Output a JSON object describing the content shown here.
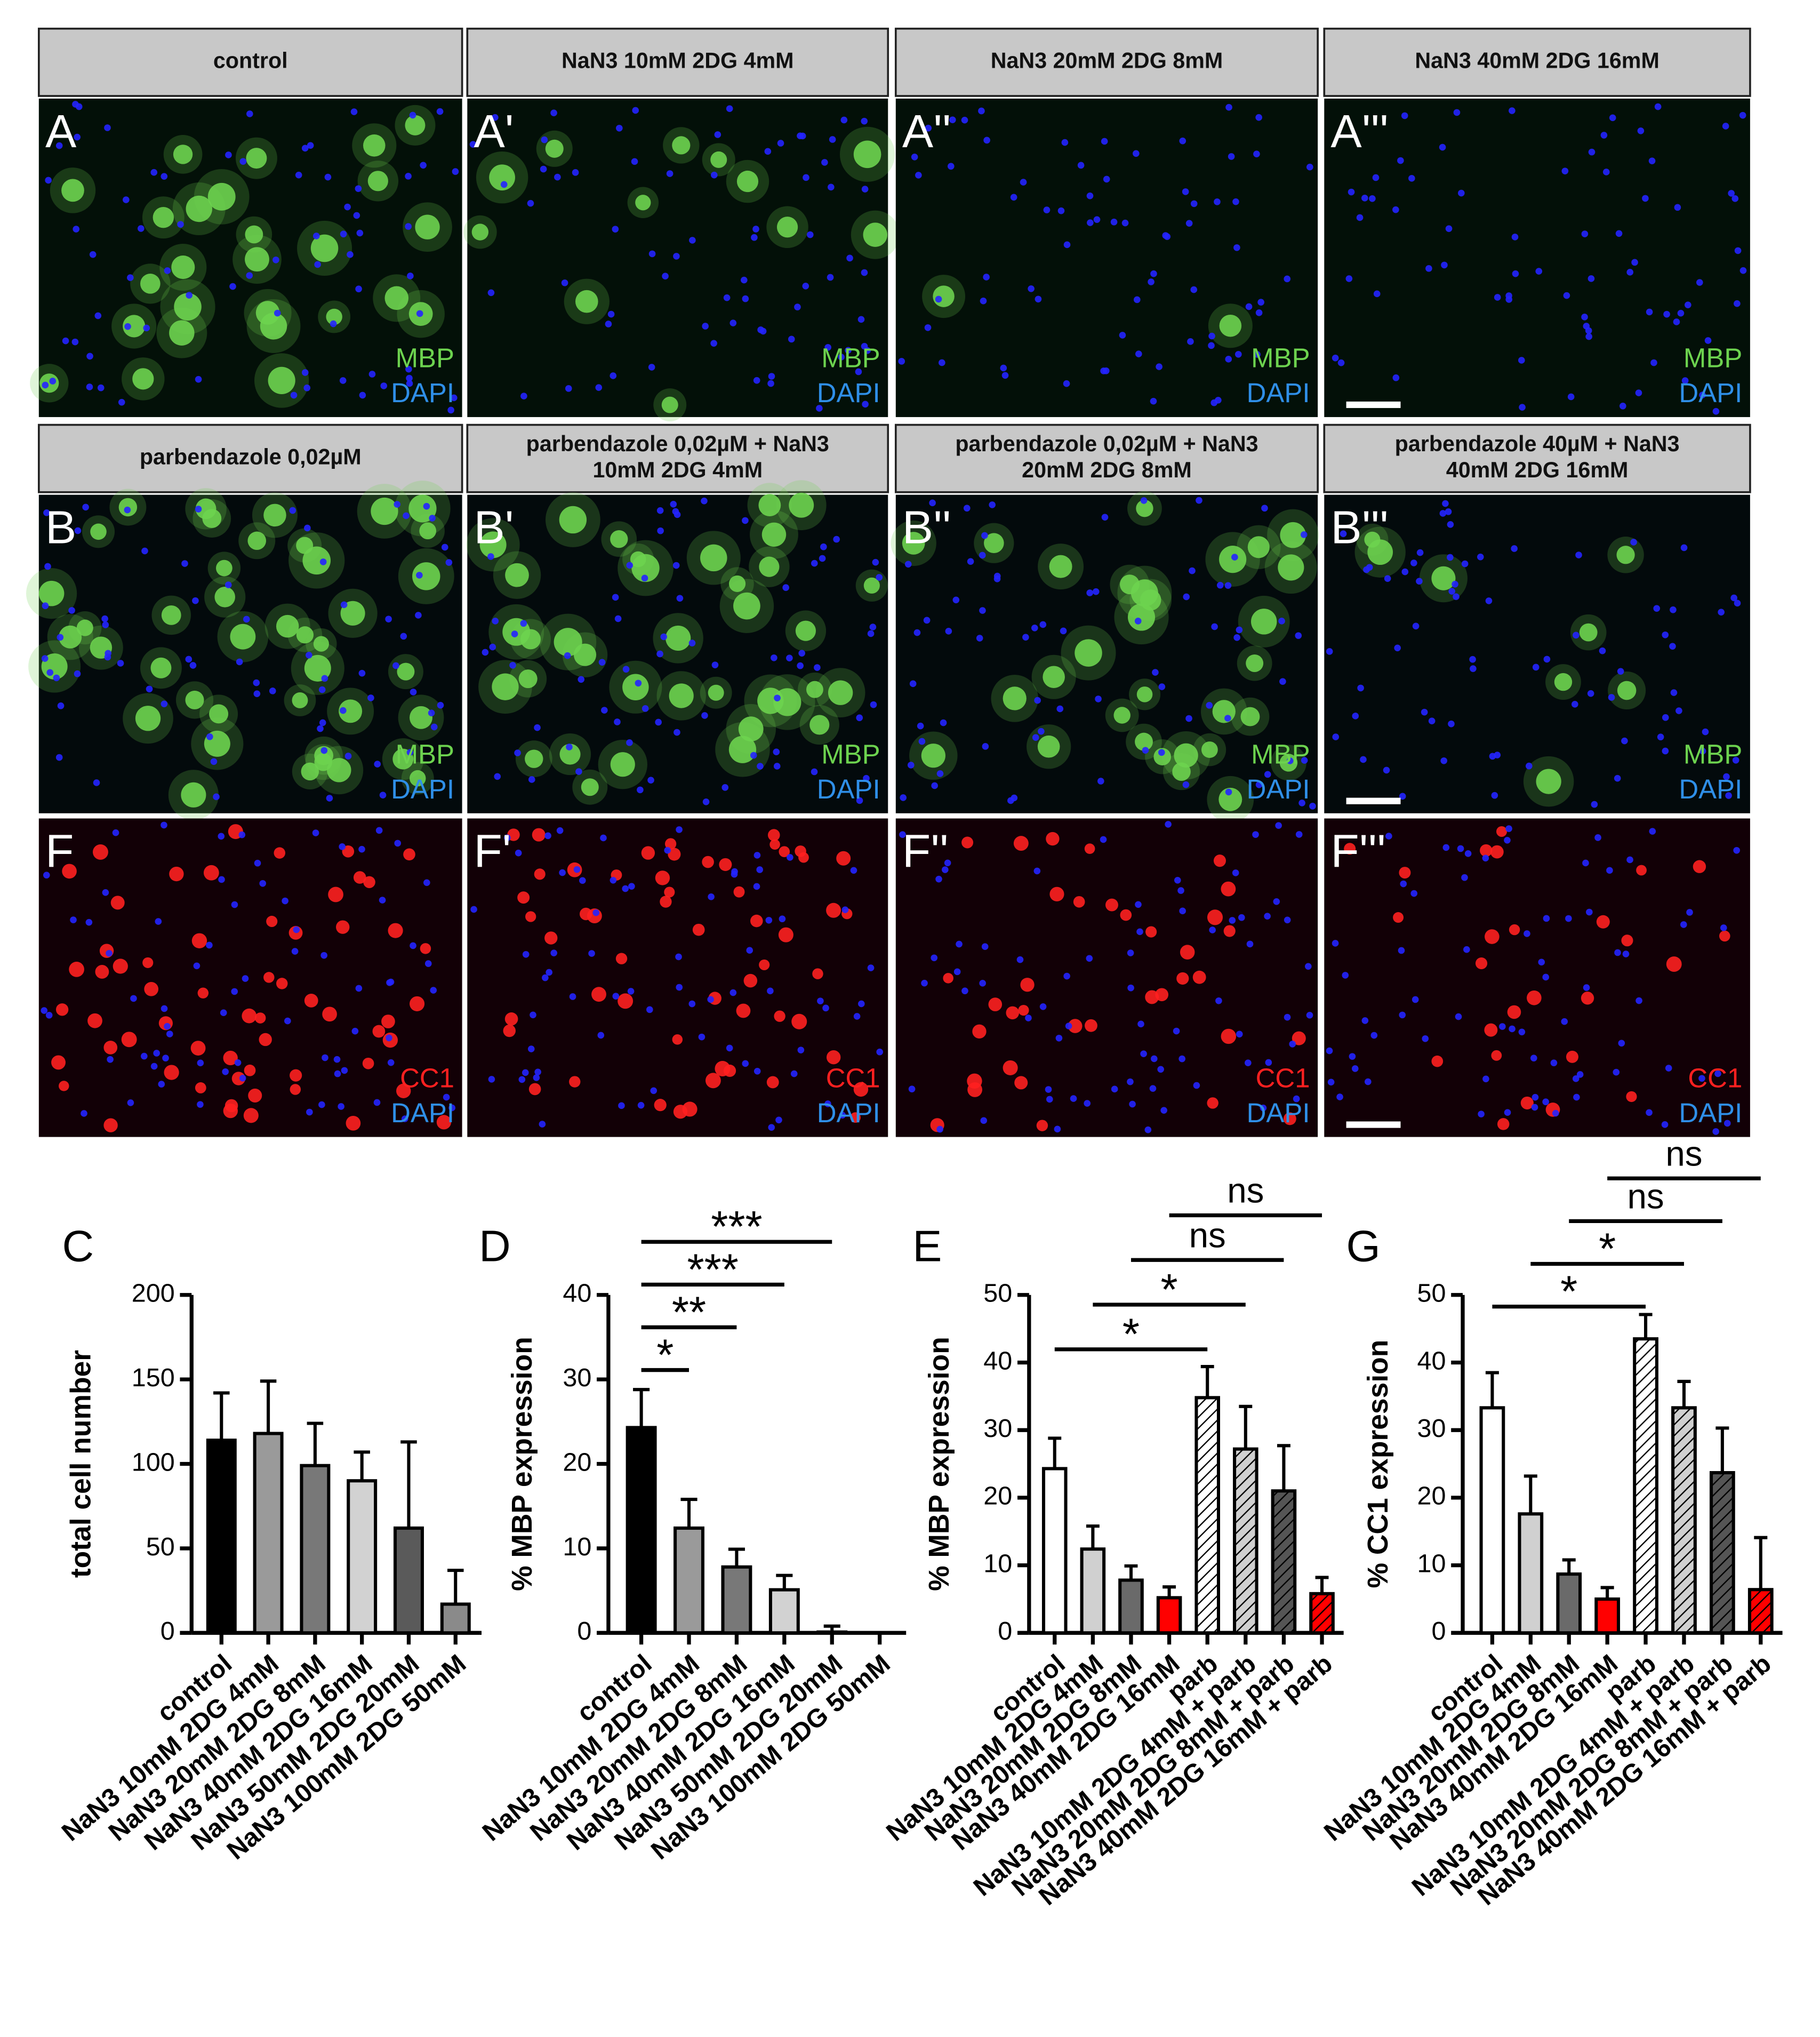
{
  "panels": {
    "rows": [
      {
        "headers": [
          [
            "control"
          ],
          [
            "NaN3 10mM 2DG 4mM"
          ],
          [
            "NaN3 20mM 2DG 8mM"
          ],
          [
            "NaN3 40mM 2DG 16mM"
          ]
        ],
        "images": [
          {
            "label": "A",
            "channels": [
              {
                "text": "MBP",
                "color": "#6dd34f"
              },
              {
                "text": "DAPI",
                "color": "#2f8fe8"
              }
            ]
          },
          {
            "label": "A'",
            "channels": [
              {
                "text": "MBP",
                "color": "#6dd34f"
              },
              {
                "text": "DAPI",
                "color": "#2f8fe8"
              }
            ]
          },
          {
            "label": "A''",
            "channels": [
              {
                "text": "MBP",
                "color": "#6dd34f"
              },
              {
                "text": "DAPI",
                "color": "#2f8fe8"
              }
            ]
          },
          {
            "label": "A'''",
            "channels": [
              {
                "text": "MBP",
                "color": "#6dd34f"
              },
              {
                "text": "DAPI",
                "color": "#2f8fe8"
              }
            ]
          }
        ]
      },
      {
        "headers": [
          [
            "parbendazole 0,02µM"
          ],
          [
            "parbendazole 0,02µM + NaN3",
            "10mM 2DG 4mM"
          ],
          [
            "parbendazole 0,02µM + NaN3",
            "20mM 2DG 8mM"
          ],
          [
            "parbendazole 40µM + NaN3",
            "40mM 2DG 16mM"
          ]
        ],
        "images": [
          {
            "label": "B",
            "channels": [
              {
                "text": "MBP",
                "color": "#6dd34f"
              },
              {
                "text": "DAPI",
                "color": "#2f8fe8"
              }
            ]
          },
          {
            "label": "B'",
            "channels": [
              {
                "text": "MBP",
                "color": "#6dd34f"
              },
              {
                "text": "DAPI",
                "color": "#2f8fe8"
              }
            ]
          },
          {
            "label": "B''",
            "channels": [
              {
                "text": "MBP",
                "color": "#6dd34f"
              },
              {
                "text": "DAPI",
                "color": "#2f8fe8"
              }
            ]
          },
          {
            "label": "B'''",
            "channels": [
              {
                "text": "MBP",
                "color": "#6dd34f"
              },
              {
                "text": "DAPI",
                "color": "#2f8fe8"
              }
            ]
          }
        ]
      },
      {
        "images": [
          {
            "label": "F",
            "channels": [
              {
                "text": "CC1",
                "color": "#ff2020"
              },
              {
                "text": "DAPI",
                "color": "#2f8fe8"
              }
            ]
          },
          {
            "label": "F'",
            "channels": [
              {
                "text": "CC1",
                "color": "#ff2020"
              },
              {
                "text": "DAPI",
                "color": "#2f8fe8"
              }
            ]
          },
          {
            "label": "F''",
            "channels": [
              {
                "text": "CC1",
                "color": "#ff2020"
              },
              {
                "text": "DAPI",
                "color": "#2f8fe8"
              }
            ]
          },
          {
            "label": "F'''",
            "channels": [
              {
                "text": "CC1",
                "color": "#ff2020"
              },
              {
                "text": "DAPI",
                "color": "#2f8fe8"
              }
            ]
          }
        ]
      }
    ]
  },
  "chart_data": [
    {
      "type": "bar",
      "label": "C",
      "ylabel": "total cell number",
      "categories": [
        "control",
        "NaN3 10mM 2DG 4mM",
        "NaN3 20mM 2DG 8mM",
        "NaN3 40mM 2DG 16mM",
        "NaN3 50mM 2DG 20mM",
        "NaN3 100mM 2DG 50mM"
      ],
      "values": [
        114,
        118,
        99,
        90,
        62,
        17
      ],
      "errors": [
        28,
        31,
        25,
        17,
        51,
        20
      ],
      "colors": [
        "#000000",
        "#9a9a9a",
        "#787878",
        "#d2d2d2",
        "#5a5a5a",
        "#8a8a8a"
      ],
      "ylim": [
        0,
        200
      ],
      "yticks": [
        0,
        50,
        100,
        150,
        200
      ]
    },
    {
      "type": "bar",
      "label": "D",
      "ylabel": "% MBP expression",
      "categories": [
        "control",
        "NaN3 10mM 2DG 4mM",
        "NaN3 20mM 2DG 8mM",
        "NaN3 40mM 2DG 16mM",
        "NaN3 50mM 2DG 20mM",
        "NaN3 100mM 2DG 50mM"
      ],
      "values": [
        24.3,
        12.4,
        7.8,
        5.1,
        0.1,
        0
      ],
      "errors": [
        4.5,
        3.4,
        2.1,
        1.7,
        0.7,
        0
      ],
      "colors": [
        "#000000",
        "#9a9a9a",
        "#787878",
        "#d2d2d2",
        "#5a5a5a",
        "#8a8a8a"
      ],
      "ylim": [
        0,
        40
      ],
      "yticks": [
        0,
        10,
        20,
        30,
        40
      ],
      "comparisons": [
        {
          "pair": [
            0,
            1
          ],
          "label": "*"
        },
        {
          "pair": [
            0,
            2
          ],
          "label": "**"
        },
        {
          "pair": [
            0,
            3
          ],
          "label": "***"
        },
        {
          "pair": [
            0,
            4
          ],
          "label": "***"
        }
      ]
    },
    {
      "type": "bar",
      "label": "E",
      "ylabel": "% MBP expression",
      "categories": [
        "control",
        "NaN3 10mM 2DG 4mM",
        "NaN3 20mM 2DG 8mM",
        "NaN3 40mM 2DG 16mM",
        "parb",
        "NaN3 10mM 2DG 4mM + parb",
        "NaN3 20mM 2DG 8mM + parb",
        "NaN3 40mM 2DG 16mM + parb"
      ],
      "values": [
        24.3,
        12.4,
        7.8,
        5.2,
        34.8,
        27.2,
        21.0,
        5.8
      ],
      "errors": [
        4.5,
        3.4,
        2.1,
        1.6,
        4.6,
        6.3,
        6.7,
        2.4
      ],
      "colors": [
        "#ffffff",
        "#d0d0d0",
        "#6a6a6a",
        "#ff0000",
        "#ffffff",
        "#d0d0d0",
        "#555555",
        "#ff0000"
      ],
      "hatched": [
        false,
        false,
        false,
        false,
        true,
        true,
        true,
        true
      ],
      "ylim": [
        0,
        50
      ],
      "yticks": [
        0,
        10,
        20,
        30,
        40,
        50
      ],
      "comparisons": [
        {
          "pair": [
            0,
            4
          ],
          "label": "*"
        },
        {
          "pair": [
            1,
            5
          ],
          "label": "*"
        },
        {
          "pair": [
            2,
            6
          ],
          "label": "ns"
        },
        {
          "pair": [
            3,
            7
          ],
          "label": "ns"
        }
      ]
    },
    {
      "type": "bar",
      "label": "G",
      "ylabel": "% CC1 expression",
      "categories": [
        "control",
        "NaN3 10mM 2DG 4mM",
        "NaN3 20mM 2DG 8mM",
        "NaN3 40mM 2DG 16mM",
        "parb",
        "NaN3 10mM 2DG 4mM + parb",
        "NaN3 20mM 2DG 8mM + parb",
        "NaN3 40mM 2DG 16mM + parb"
      ],
      "values": [
        33.3,
        17.6,
        8.7,
        5.0,
        43.5,
        33.3,
        23.7,
        6.4
      ],
      "errors": [
        5.2,
        5.6,
        2.1,
        1.7,
        3.6,
        3.9,
        6.6,
        7.7
      ],
      "colors": [
        "#ffffff",
        "#d0d0d0",
        "#6a6a6a",
        "#ff0000",
        "#ffffff",
        "#d0d0d0",
        "#555555",
        "#ff0000"
      ],
      "hatched": [
        false,
        false,
        false,
        false,
        true,
        true,
        true,
        true
      ],
      "ylim": [
        0,
        50
      ],
      "yticks": [
        0,
        10,
        20,
        30,
        40,
        50
      ],
      "comparisons": [
        {
          "pair": [
            0,
            4
          ],
          "label": "*"
        },
        {
          "pair": [
            1,
            5
          ],
          "label": "*"
        },
        {
          "pair": [
            2,
            6
          ],
          "label": "ns"
        },
        {
          "pair": [
            3,
            7
          ],
          "label": "ns"
        }
      ]
    }
  ]
}
